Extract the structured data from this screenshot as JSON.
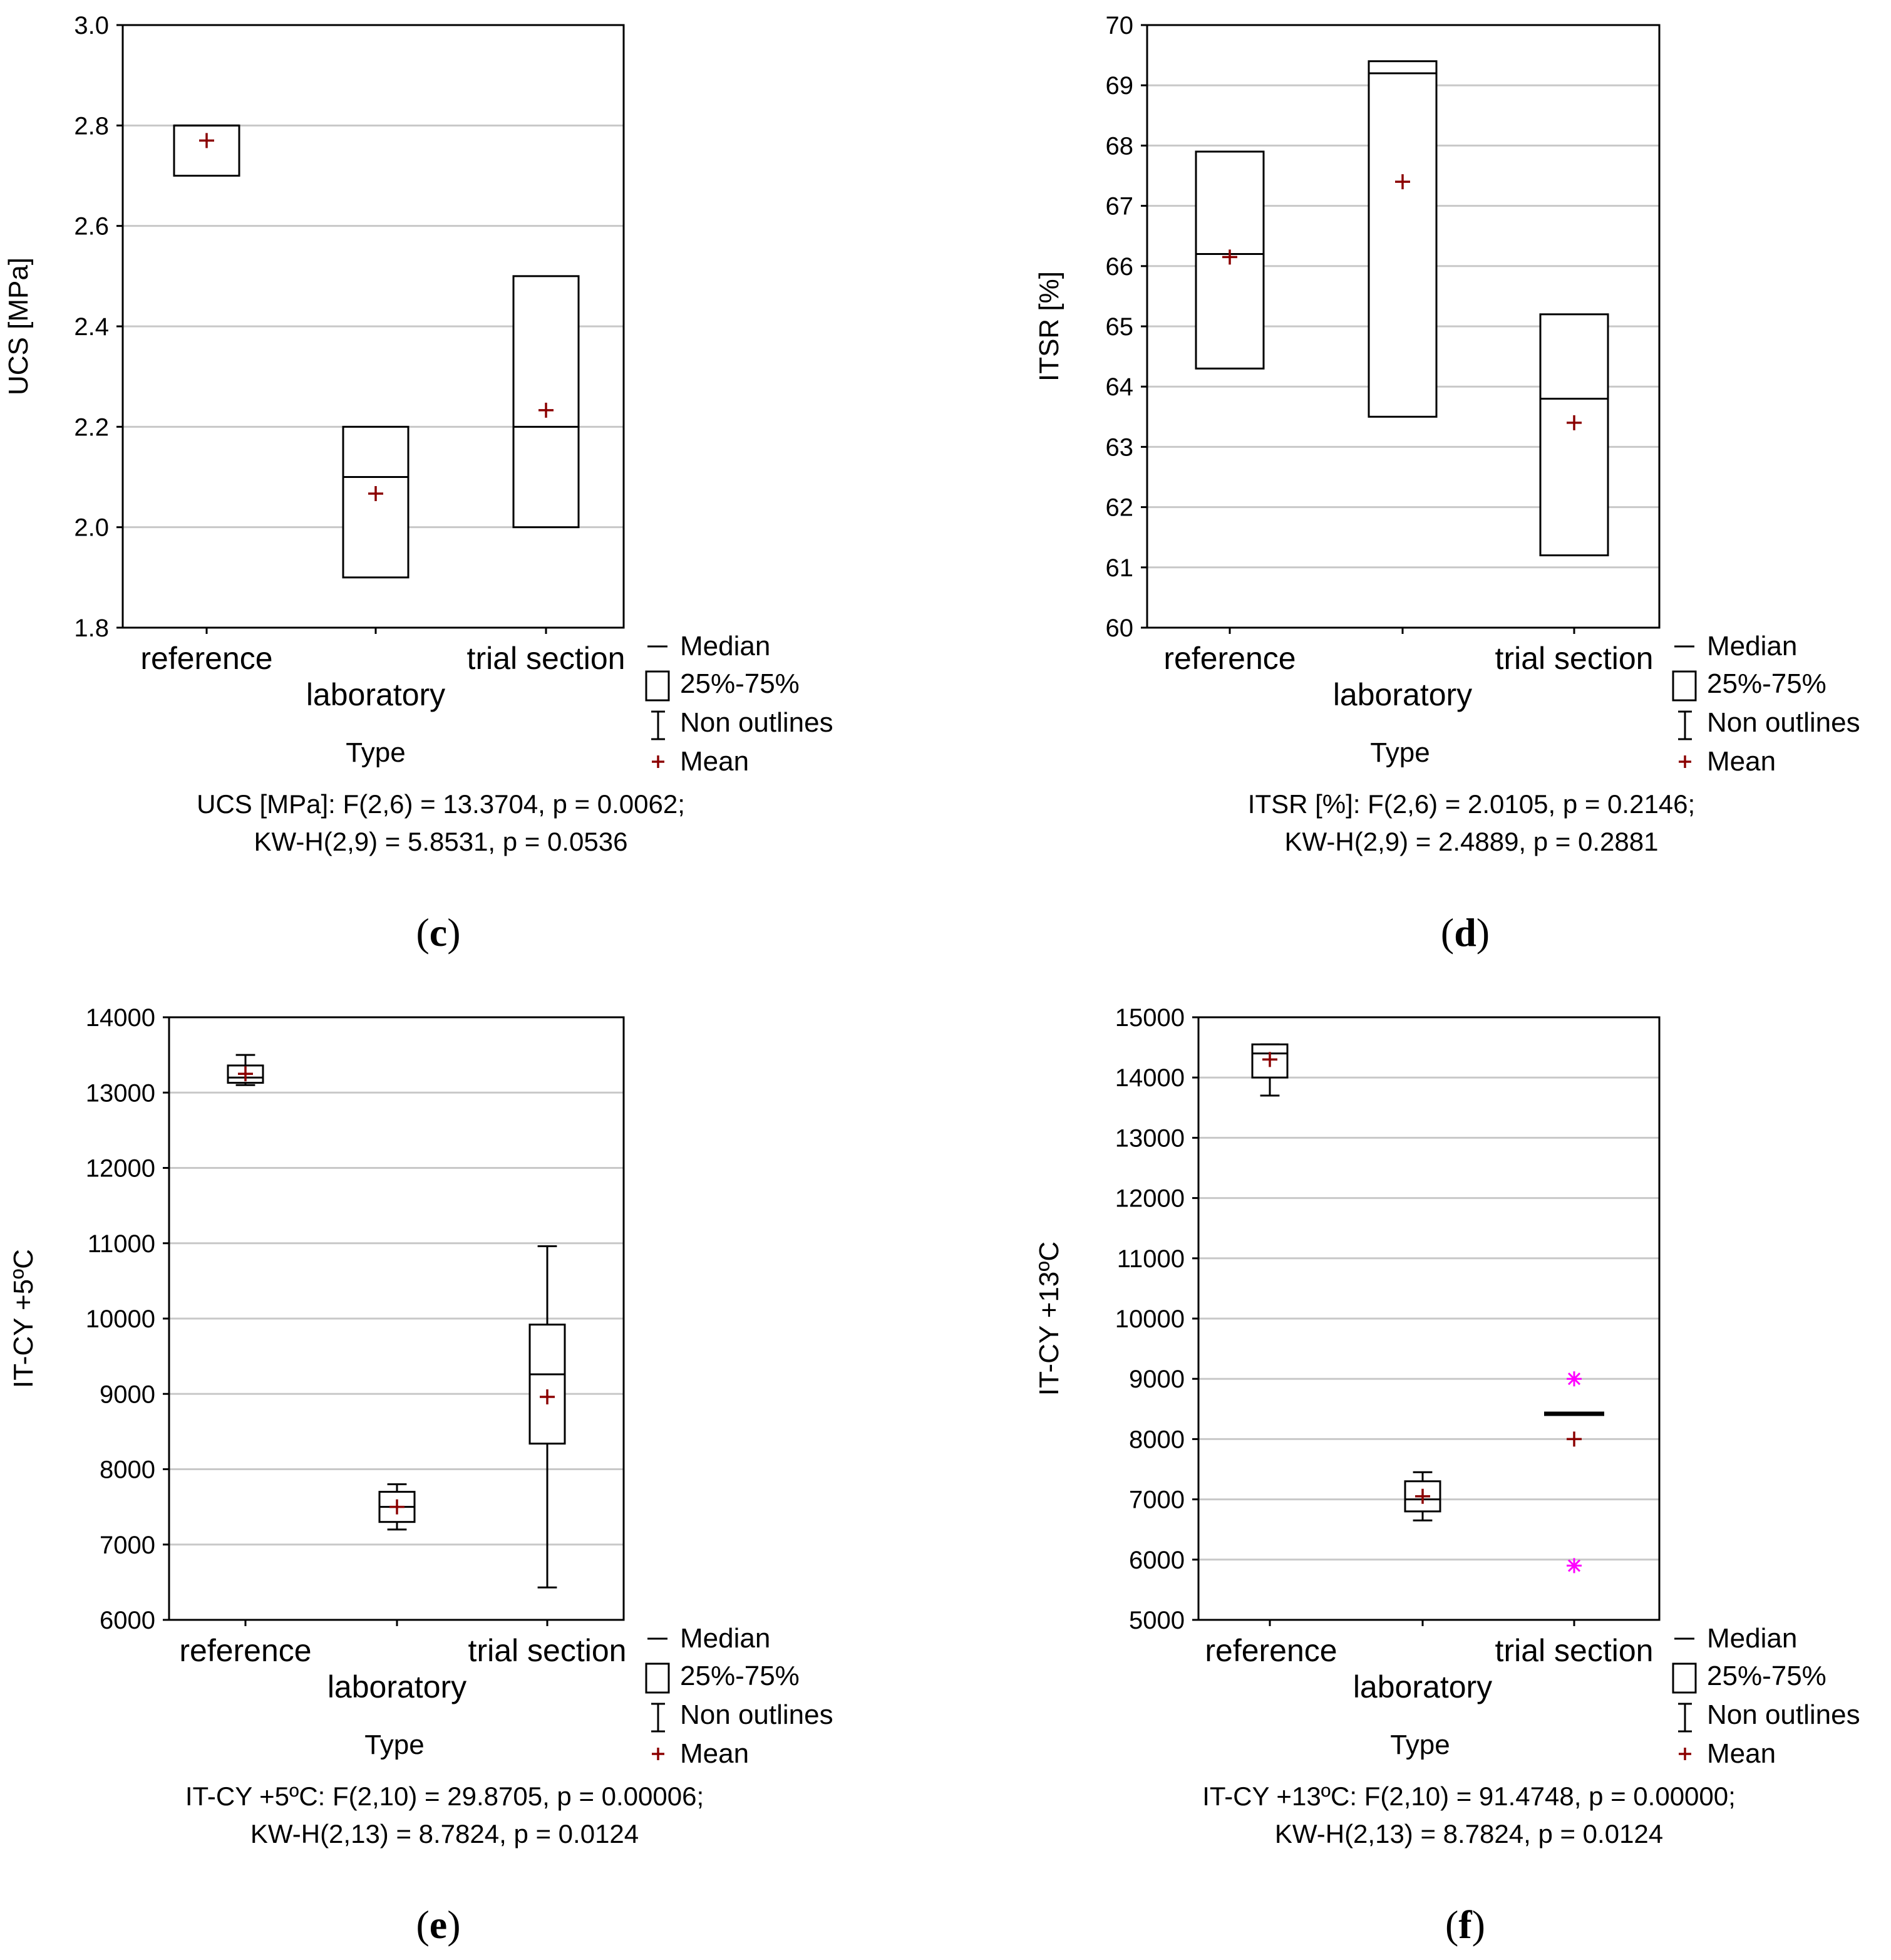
{
  "chart_data": [
    {
      "type": "box",
      "panel": "c",
      "ylabel": "UCS [MPa]",
      "xlabel": "Type",
      "ylim": [
        1.8,
        3.0
      ],
      "yticks": [
        1.8,
        2.0,
        2.2,
        2.4,
        2.6,
        2.8,
        3.0
      ],
      "ytick_labels": [
        "1.8",
        "2.0",
        "2.2",
        "2.4",
        "2.6",
        "2.8",
        "3.0"
      ],
      "categories": [
        "reference",
        "laboratory",
        "trial section"
      ],
      "boxes": [
        {
          "q1": 2.7,
          "median": 2.8,
          "q3": 2.8,
          "mean": 2.77
        },
        {
          "q1": 1.9,
          "median": 2.1,
          "q3": 2.2,
          "mean": 2.067
        },
        {
          "q1": 2.0,
          "median": 2.2,
          "q3": 2.5,
          "mean": 2.233
        }
      ],
      "stats_line1": "UCS [MPa]:   F(2,6) = 13.3704, p = 0.0062;",
      "stats_line2": "KW-H(2,9) = 5.8531, p = 0.0536"
    },
    {
      "type": "box",
      "panel": "d",
      "ylabel": "ITSR [%]",
      "xlabel": "Type",
      "ylim": [
        60,
        70
      ],
      "yticks": [
        60,
        61,
        62,
        63,
        64,
        65,
        66,
        67,
        68,
        69,
        70
      ],
      "ytick_labels": [
        "60",
        "61",
        "62",
        "63",
        "64",
        "65",
        "66",
        "67",
        "68",
        "69",
        "70"
      ],
      "categories": [
        "reference",
        "laboratory",
        "trial section"
      ],
      "boxes": [
        {
          "q1": 64.3,
          "median": 66.2,
          "q3": 67.9,
          "mean": 66.15
        },
        {
          "q1": 63.5,
          "median": 69.2,
          "q3": 69.4,
          "mean": 67.4
        },
        {
          "q1": 61.2,
          "median": 63.8,
          "q3": 65.2,
          "mean": 63.4
        }
      ],
      "stats_line1": "ITSR [%]:   F(2,6) = 2.0105, p = 0.2146;",
      "stats_line2": "KW-H(2,9) = 2.4889, p = 0.2881"
    },
    {
      "type": "box",
      "panel": "e",
      "ylabel": "IT-CY +5ºC",
      "xlabel": "Type",
      "ylim": [
        6000,
        14000
      ],
      "yticks": [
        6000,
        7000,
        8000,
        9000,
        10000,
        11000,
        12000,
        13000,
        14000
      ],
      "ytick_labels": [
        "6000",
        "7000",
        "8000",
        "9000",
        "10000",
        "11000",
        "12000",
        "13000",
        "14000"
      ],
      "categories": [
        "reference",
        "laboratory",
        "trial section"
      ],
      "boxes": [
        {
          "whisker_low": 13100,
          "q1": 13130,
          "median": 13200,
          "q3": 13360,
          "whisker_high": 13500,
          "mean": 13250
        },
        {
          "whisker_low": 7200,
          "q1": 7300,
          "median": 7500,
          "q3": 7700,
          "whisker_high": 7800,
          "mean": 7500
        },
        {
          "whisker_low": 6430,
          "q1": 8340,
          "median": 9260,
          "q3": 9920,
          "whisker_high": 10960,
          "mean": 8960
        }
      ],
      "stats_line1": "IT-CY +5ºC:   F(2,10) = 29.8705, p = 0.00006;",
      "stats_line2": "KW-H(2,13) = 8.7824, p = 0.0124"
    },
    {
      "type": "box",
      "panel": "f",
      "ylabel": "IT-CY +13ºC",
      "xlabel": "Type",
      "ylim": [
        5000,
        15000
      ],
      "yticks": [
        5000,
        6000,
        7000,
        8000,
        9000,
        10000,
        11000,
        12000,
        13000,
        14000,
        15000
      ],
      "ytick_labels": [
        "5000",
        "6000",
        "7000",
        "8000",
        "9000",
        "10000",
        "11000",
        "12000",
        "13000",
        "14000",
        "15000"
      ],
      "categories": [
        "reference",
        "laboratory",
        "trial section"
      ],
      "boxes": [
        {
          "whisker_low": 13700,
          "q1": 14000,
          "median": 14400,
          "q3": 14550,
          "whisker_high": 14550,
          "mean": 14300
        },
        {
          "whisker_low": 6650,
          "q1": 6800,
          "median": 7000,
          "q3": 7300,
          "whisker_high": 7450,
          "mean": 7050
        },
        {
          "median": 8420,
          "mean": 8000,
          "outliers": [
            9000,
            5900
          ]
        }
      ],
      "stats_line1": "IT-CY +13ºC:   F(2,10) = 91.4748, p = 0.00000;",
      "stats_line2": "KW-H(2,13) = 8.7824, p = 0.0124"
    }
  ],
  "legend": {
    "items": [
      "Median",
      "25%-75%",
      "Non outlines",
      "Mean"
    ]
  },
  "colors": {
    "mean": "#8b0000",
    "outlier": "#ff00ff",
    "grid": "#c8c8c8",
    "frame": "#000000"
  }
}
